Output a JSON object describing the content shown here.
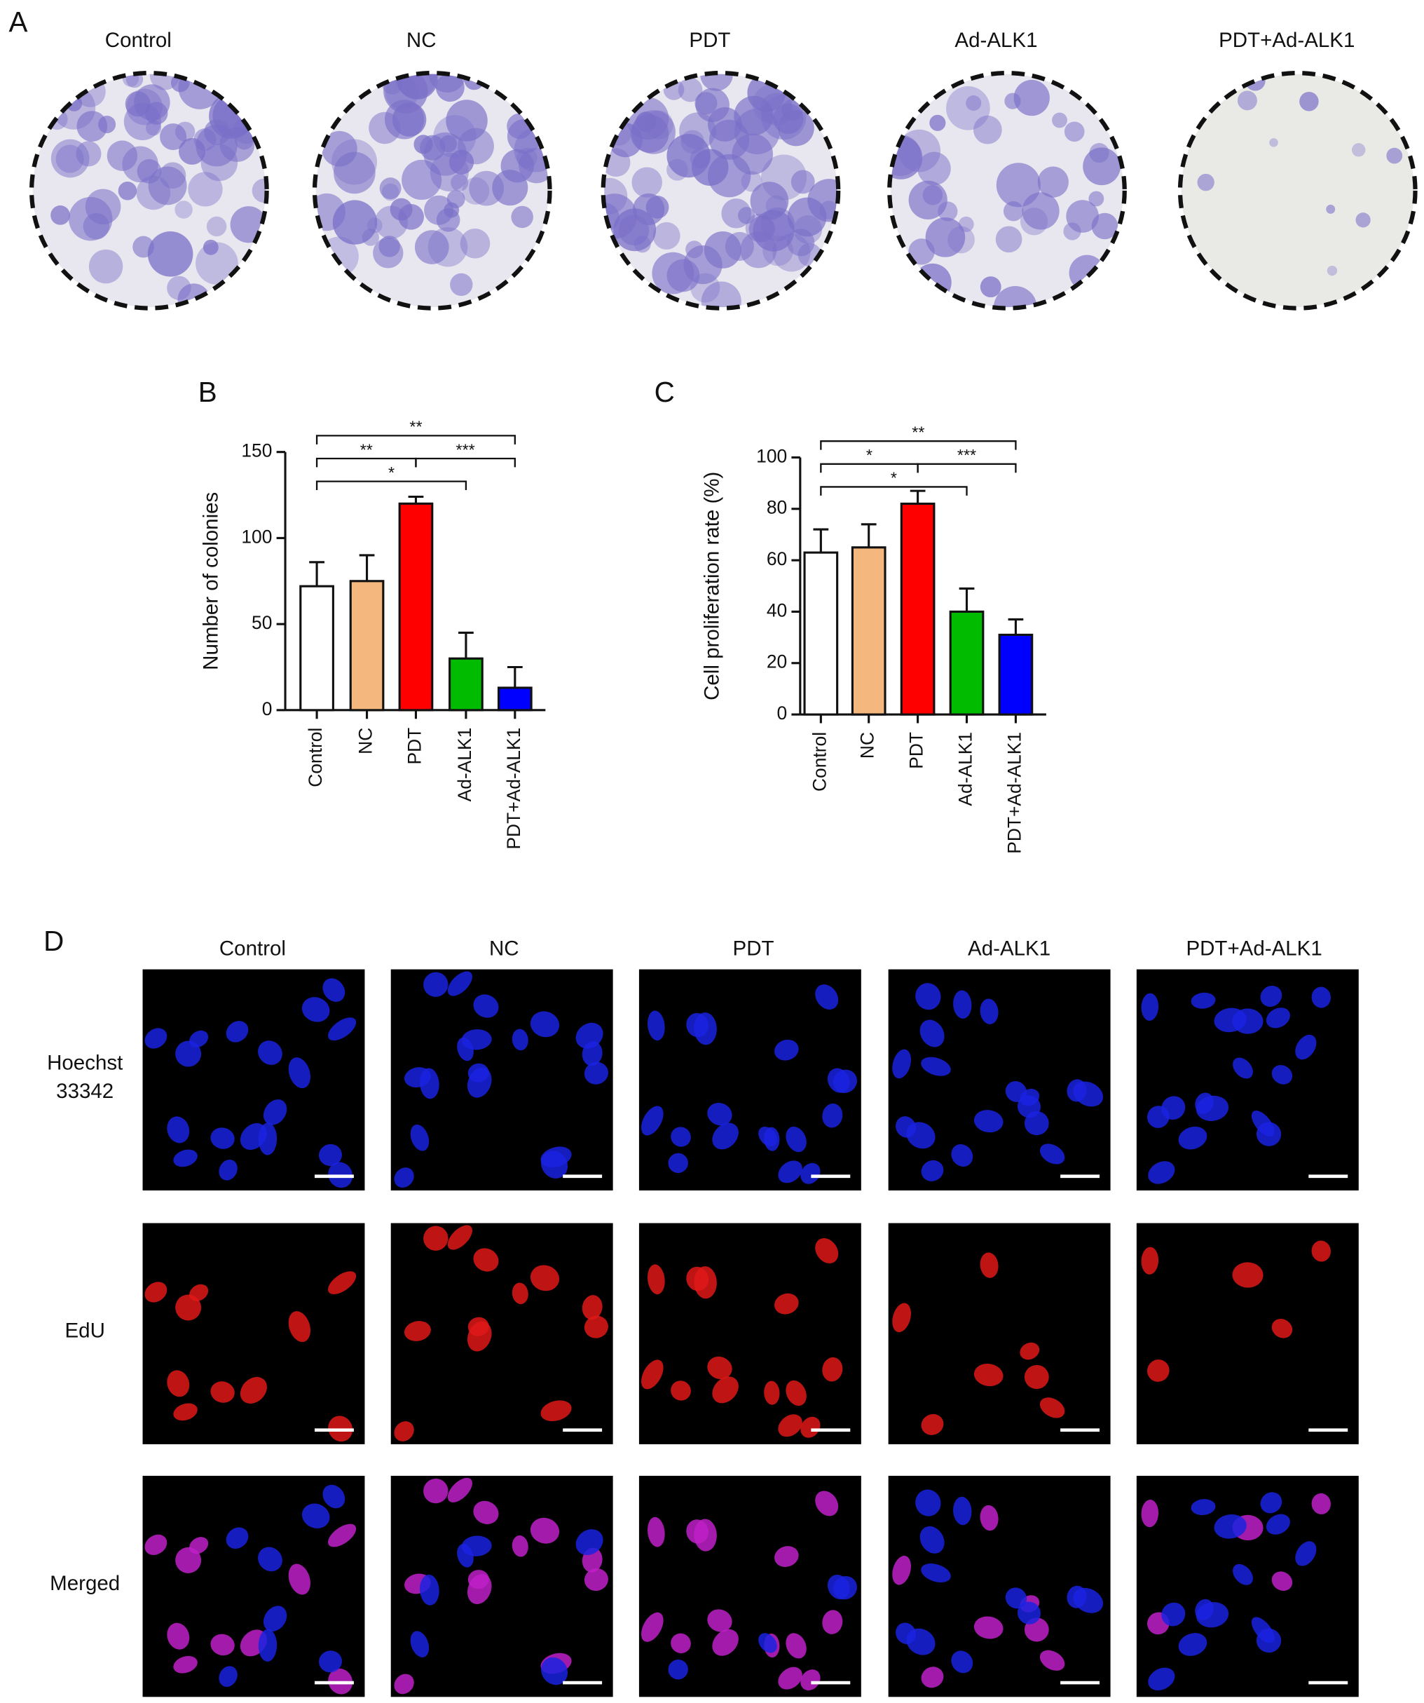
{
  "panel_a": {
    "letter": "A",
    "labels": [
      "Control",
      "NC",
      "PDT",
      "Ad-ALK1",
      "PDT+Ad-ALK1"
    ]
  },
  "chart_data": [
    {
      "type": "bar",
      "panel": "B",
      "y_label": "Number of colonies",
      "categories": [
        "Control",
        "NC",
        "PDT",
        "Ad-ALK1",
        "PDT+Ad-ALK1"
      ],
      "values": [
        72,
        75,
        120,
        30,
        13
      ],
      "errors": [
        14,
        15,
        4,
        15,
        12
      ],
      "colors": [
        "#ffffff",
        "#f4b77e",
        "#ff0000",
        "#00bb00",
        "#0000ff"
      ],
      "ylim": [
        0,
        150
      ],
      "yticks": [
        0,
        50,
        100,
        150
      ],
      "annotations": [
        {
          "text": "**",
          "between": [
            "Control",
            "PDT+Ad-ALK1"
          ]
        },
        {
          "text": "**",
          "between": [
            "Control",
            "PDT"
          ]
        },
        {
          "text": "***",
          "between": [
            "PDT",
            "PDT+Ad-ALK1"
          ]
        },
        {
          "text": "*",
          "between": [
            "Control",
            "Ad-ALK1"
          ]
        }
      ]
    },
    {
      "type": "bar",
      "panel": "C",
      "y_label": "Cell proliferation rate (%)",
      "categories": [
        "Control",
        "NC",
        "PDT",
        "Ad-ALK1",
        "PDT+Ad-ALK1"
      ],
      "values": [
        63,
        65,
        82,
        40,
        31
      ],
      "errors": [
        9,
        9,
        5,
        9,
        6
      ],
      "colors": [
        "#ffffff",
        "#f4b77e",
        "#ff0000",
        "#00bb00",
        "#0000ff"
      ],
      "ylim": [
        0,
        100
      ],
      "yticks": [
        0,
        20,
        40,
        60,
        80,
        100
      ],
      "annotations": [
        {
          "text": "**",
          "between": [
            "Control",
            "PDT+Ad-ALK1"
          ]
        },
        {
          "text": "*",
          "between": [
            "Control",
            "PDT"
          ]
        },
        {
          "text": "***",
          "between": [
            "PDT",
            "PDT+Ad-ALK1"
          ]
        },
        {
          "text": "*",
          "between": [
            "Control",
            "Ad-ALK1"
          ]
        }
      ]
    }
  ],
  "panel_d": {
    "letter": "D",
    "columns": [
      "Control",
      "NC",
      "PDT",
      "Ad-ALK1",
      "PDT+Ad-ALK1"
    ],
    "rows": [
      [
        "Hoechst",
        "33342"
      ],
      [
        "EdU"
      ],
      [
        "Merged"
      ]
    ]
  }
}
